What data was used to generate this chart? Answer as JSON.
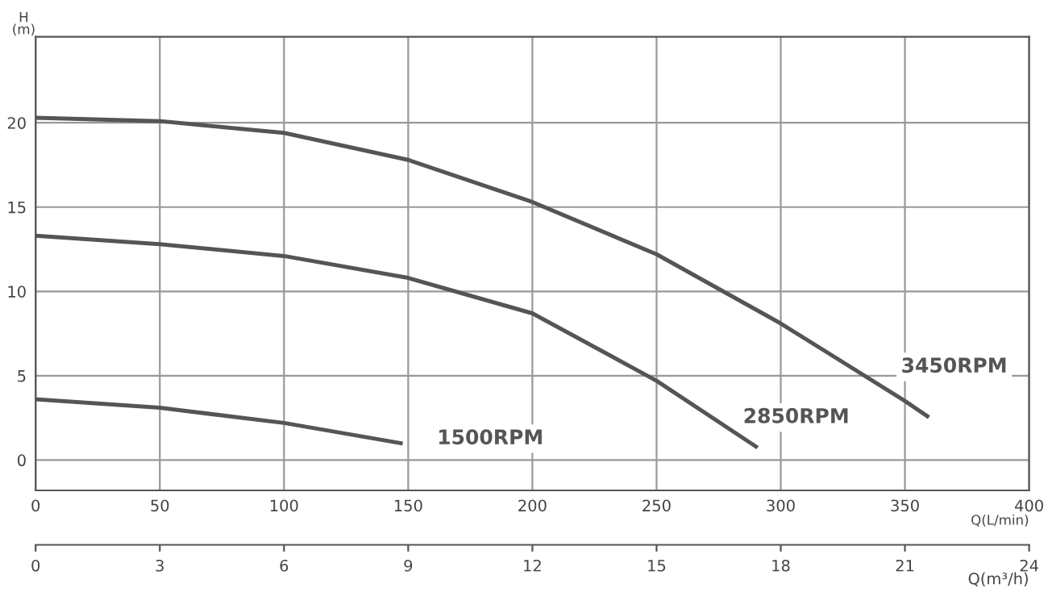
{
  "chart_data": {
    "type": "line",
    "xlabel": "Q(L/min)",
    "x2label": "Q(m³/h)",
    "ylabel": "H\n(m)",
    "xlim": [
      0,
      400
    ],
    "xticks": [
      0,
      50,
      100,
      150,
      200,
      250,
      300,
      350,
      400
    ],
    "x2lim": [
      0,
      24
    ],
    "x2ticks": [
      0,
      3,
      6,
      9,
      12,
      15,
      18,
      21,
      24
    ],
    "ylim": [
      -1.8,
      25.1
    ],
    "yticks": [
      0,
      5,
      10,
      15,
      20
    ],
    "grid": true,
    "line_style": "solid",
    "marker": "none",
    "series": [
      {
        "name": "3450RPM",
        "color": "#555555",
        "x": [
          0,
          50,
          100,
          150,
          200,
          250,
          300,
          350,
          359
        ],
        "values": [
          20.3,
          20.1,
          19.4,
          17.8,
          15.3,
          12.2,
          8.1,
          3.5,
          2.6
        ]
      },
      {
        "name": "2850RPM",
        "color": "#555555",
        "x": [
          0,
          50,
          100,
          150,
          200,
          250,
          290
        ],
        "values": [
          13.3,
          12.8,
          12.1,
          10.8,
          8.7,
          4.7,
          0.8
        ]
      },
      {
        "name": "1500RPM",
        "color": "#555555",
        "x": [
          0,
          50,
          100,
          147
        ],
        "values": [
          3.6,
          3.1,
          2.2,
          1.0
        ]
      }
    ]
  }
}
